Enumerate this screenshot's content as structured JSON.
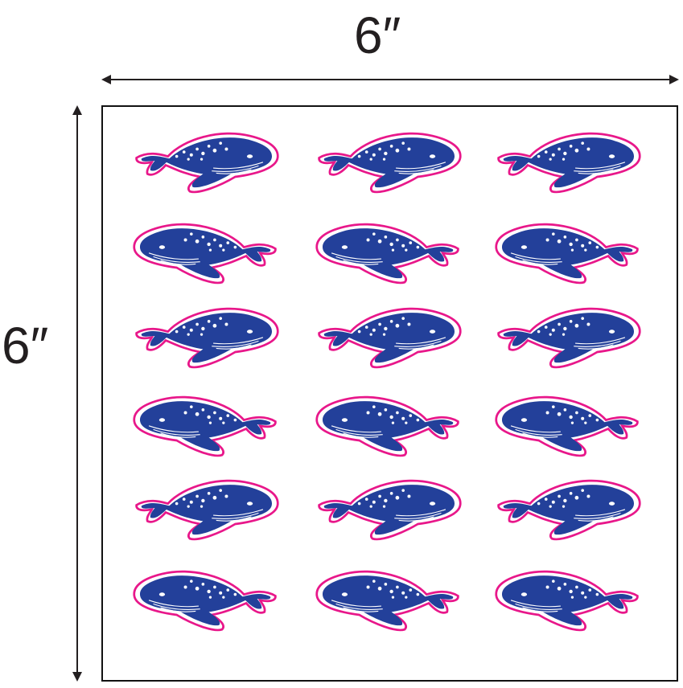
{
  "dimensions": {
    "width_label": "6″",
    "height_label": "6″"
  },
  "sticker_sheet": {
    "rows": 6,
    "columns": 3,
    "sticker_icon": "whale-icon",
    "colors": {
      "whale": "#23409a",
      "cut_line": "#e8178a",
      "spots": "#ffffff",
      "border": "#111111",
      "arrow": "#231f20"
    }
  }
}
